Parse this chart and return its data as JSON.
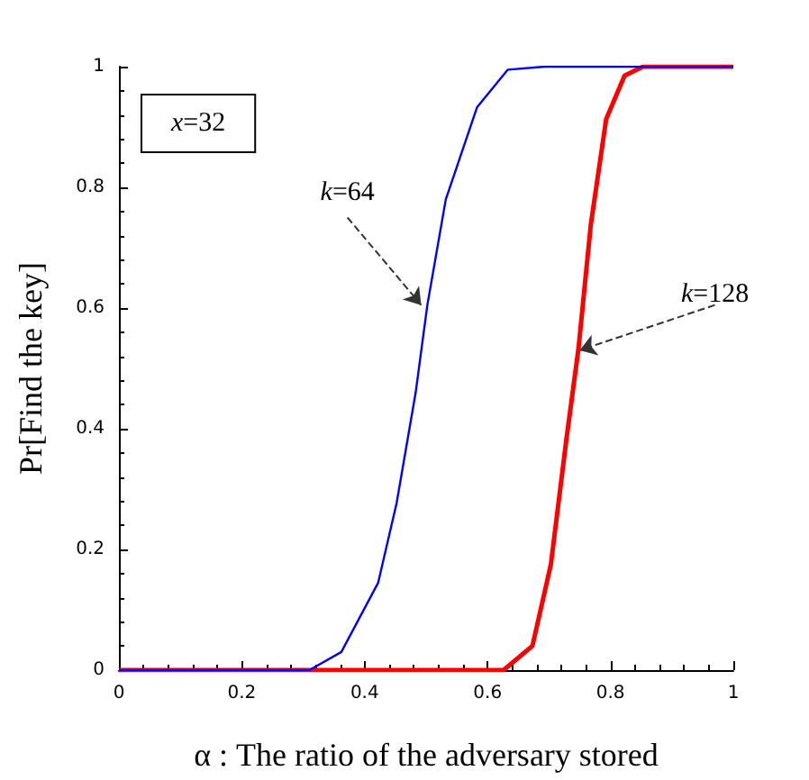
{
  "chart_data": {
    "type": "line",
    "xlabel": "α : The ratio of the adversary stored",
    "ylabel": "Pr[Find the key]",
    "xlim": [
      0,
      1
    ],
    "ylim": [
      0,
      1
    ],
    "xticks": [
      0,
      0.2,
      0.4,
      0.6,
      0.8,
      1
    ],
    "yticks": [
      0,
      0.2,
      0.4,
      0.6,
      0.8,
      1
    ],
    "grid": false,
    "marker": "none",
    "line_style": "solid",
    "series": [
      {
        "color": "#0000ff",
        "x": [
          0,
          0.31,
          0.362,
          0.422,
          0.452,
          0.483,
          0.502,
          0.532,
          0.583,
          0.633,
          0.693,
          1
        ],
        "values": [
          0,
          0,
          0.03,
          0.145,
          0.277,
          0.46,
          0.605,
          0.78,
          0.933,
          0.995,
          1,
          1
        ]
      },
      {
        "color": "#ff0000",
        "x": [
          0,
          0.626,
          0.673,
          0.703,
          0.728,
          0.748,
          0.768,
          0.793,
          0.823,
          0.853,
          1
        ],
        "values": [
          0,
          0,
          0.04,
          0.175,
          0.38,
          0.533,
          0.738,
          0.913,
          0.985,
          1,
          1
        ]
      }
    ],
    "annotations": [
      "x=32",
      {
        "text": "k=64",
        "x": 0.492,
        "y": 0.605
      },
      {
        "text": "k=128",
        "x": 0.75,
        "y": 0.53
      }
    ]
  }
}
